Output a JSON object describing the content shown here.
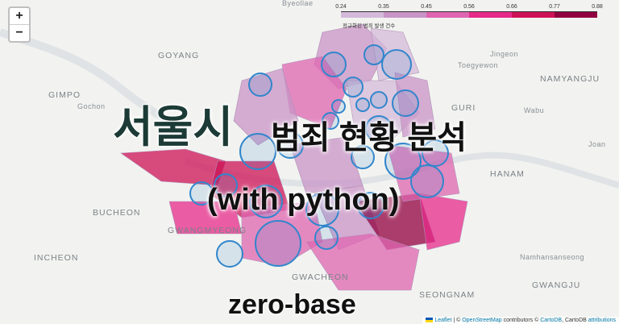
{
  "zoom": {
    "in": "+",
    "out": "−"
  },
  "places": [
    {
      "name": "Byeollae",
      "big": false
    },
    {
      "name": "GOYANG",
      "big": true
    },
    {
      "name": "Jingeon",
      "big": false
    },
    {
      "name": "Toegyewon",
      "big": false
    },
    {
      "name": "NAMYANGJU",
      "big": true
    },
    {
      "name": "GIMPO",
      "big": true
    },
    {
      "name": "Gochon",
      "big": false
    },
    {
      "name": "GURI",
      "big": true
    },
    {
      "name": "Wabu",
      "big": false
    },
    {
      "name": "Joan",
      "big": false
    },
    {
      "name": "HANAM",
      "big": true
    },
    {
      "name": "BUCHEON",
      "big": true
    },
    {
      "name": "GWANGMYEONG",
      "big": true
    },
    {
      "name": "INCHEON",
      "big": true
    },
    {
      "name": "Namhansanseong",
      "big": false
    },
    {
      "name": "GWACHEON",
      "big": true
    },
    {
      "name": "SEONGNAM",
      "big": true
    },
    {
      "name": "GWANGJU",
      "big": true
    }
  ],
  "legend": {
    "ticks": [
      "0.24",
      "0.35",
      "0.45",
      "0.56",
      "0.66",
      "0.77",
      "0.88"
    ],
    "colors": [
      "#f1eef6",
      "#d4b9da",
      "#c994c7",
      "#df65b0",
      "#e7298a",
      "#ce1256",
      "#91003f"
    ],
    "caption": "정규화된 범죄 발생 건수"
  },
  "title": {
    "main": "서울시",
    "sub": "범죄 현황 분석",
    "lang": "(with python)",
    "brand": "zero-base"
  },
  "attribution": {
    "leaflet": "Leaflet",
    "sep1": " | © ",
    "osm": "OpenStreetMap",
    "mid": " contributors © ",
    "carto": "CartoDB",
    "mid2": ", CartoDB ",
    "attr": "attributions"
  },
  "circle_color": "#3186cc"
}
